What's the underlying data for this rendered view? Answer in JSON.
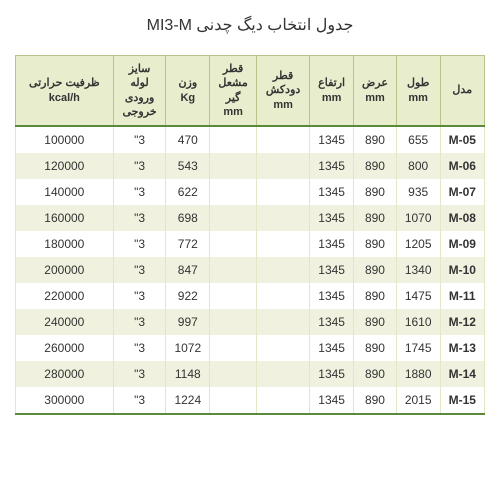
{
  "title": "جدول انتخاب دیگ چدنی MI3-M",
  "table": {
    "columns": [
      "مدل",
      "طول\nmm",
      "عرض\nmm",
      "ارتفاع\nmm",
      "قطر\nدودکش\nmm",
      "قطر\nمشعل\nگیر\nmm",
      "وزن\nKg",
      "سایز\nلوله\nورودی\nخروجی",
      "ظرفیت حرارتی\nkcal/h"
    ],
    "rows": [
      {
        "model": "M-05",
        "length": "655",
        "width": "890",
        "height": "1345",
        "chimney": "",
        "burner": "",
        "weight": "470",
        "pipe": "3\"",
        "capacity": "100000"
      },
      {
        "model": "M-06",
        "length": "800",
        "width": "890",
        "height": "1345",
        "chimney": "",
        "burner": "",
        "weight": "543",
        "pipe": "3\"",
        "capacity": "120000"
      },
      {
        "model": "M-07",
        "length": "935",
        "width": "890",
        "height": "1345",
        "chimney": "",
        "burner": "",
        "weight": "622",
        "pipe": "3\"",
        "capacity": "140000"
      },
      {
        "model": "M-08",
        "length": "1070",
        "width": "890",
        "height": "1345",
        "chimney": "",
        "burner": "",
        "weight": "698",
        "pipe": "3\"",
        "capacity": "160000"
      },
      {
        "model": "M-09",
        "length": "1205",
        "width": "890",
        "height": "1345",
        "chimney": "",
        "burner": "",
        "weight": "772",
        "pipe": "3\"",
        "capacity": "180000"
      },
      {
        "model": "M-10",
        "length": "1340",
        "width": "890",
        "height": "1345",
        "chimney": "",
        "burner": "",
        "weight": "847",
        "pipe": "3\"",
        "capacity": "200000"
      },
      {
        "model": "M-11",
        "length": "1475",
        "width": "890",
        "height": "1345",
        "chimney": "",
        "burner": "",
        "weight": "922",
        "pipe": "3\"",
        "capacity": "220000"
      },
      {
        "model": "M-12",
        "length": "1610",
        "width": "890",
        "height": "1345",
        "chimney": "",
        "burner": "",
        "weight": "997",
        "pipe": "3\"",
        "capacity": "240000"
      },
      {
        "model": "M-13",
        "length": "1745",
        "width": "890",
        "height": "1345",
        "chimney": "",
        "burner": "",
        "weight": "1072",
        "pipe": "3\"",
        "capacity": "260000"
      },
      {
        "model": "M-14",
        "length": "1880",
        "width": "890",
        "height": "1345",
        "chimney": "",
        "burner": "",
        "weight": "1148",
        "pipe": "3\"",
        "capacity": "280000"
      },
      {
        "model": "M-15",
        "length": "2015",
        "width": "890",
        "height": "1345",
        "chimney": "",
        "burner": "",
        "weight": "1224",
        "pipe": "3\"",
        "capacity": "300000"
      }
    ]
  }
}
